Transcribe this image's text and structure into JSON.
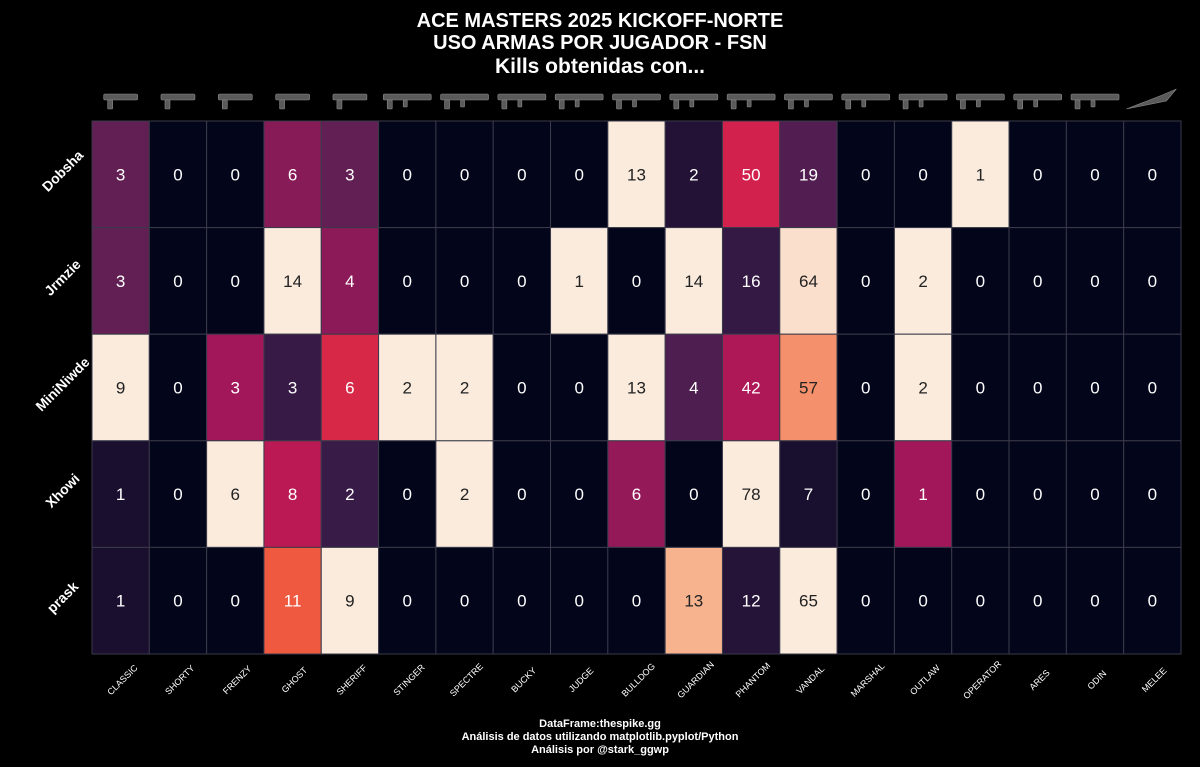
{
  "title_lines": [
    "ACE MASTERS 2025 KICKOFF-NORTE",
    "USO ARMAS POR JUGADOR - FSN",
    "Kills obtenidas con..."
  ],
  "footer_lines": [
    "DataFrame:thespike.gg",
    "Análisis de datos utilizando matplotlib.pyplot/Python",
    "Análisis por @stark_ggwp"
  ],
  "chart_data": {
    "type": "heatmap",
    "title": "ACE MASTERS 2025 KICKOFF-NORTE USO ARMAS POR JUGADOR - FSN Kills obtenidas con...",
    "rows": [
      "Dobsha",
      "Jrmzie",
      "MiniNiwde",
      "Xhowi",
      "prask"
    ],
    "columns": [
      "CLASSIC",
      "SHORTY",
      "FRENZY",
      "GHOST",
      "SHERIFF",
      "STINGER",
      "SPECTRE",
      "BUCKY",
      "JUDGE",
      "BULLDOG",
      "GUARDIAN",
      "PHANTOM",
      "VANDAL",
      "MARSHAL",
      "OUTLAW",
      "OPERATOR",
      "ARES",
      "ODIN",
      "MELEE"
    ],
    "values": [
      [
        3,
        0,
        0,
        6,
        3,
        0,
        0,
        0,
        0,
        13,
        2,
        50,
        19,
        0,
        0,
        1,
        0,
        0,
        0
      ],
      [
        3,
        0,
        0,
        14,
        4,
        0,
        0,
        0,
        1,
        0,
        14,
        16,
        64,
        0,
        2,
        0,
        0,
        0,
        0
      ],
      [
        9,
        0,
        3,
        3,
        6,
        2,
        2,
        0,
        0,
        13,
        4,
        42,
        57,
        0,
        2,
        0,
        0,
        0,
        0
      ],
      [
        1,
        0,
        6,
        8,
        2,
        0,
        2,
        0,
        0,
        6,
        0,
        78,
        7,
        0,
        1,
        0,
        0,
        0,
        0
      ],
      [
        1,
        0,
        0,
        11,
        9,
        0,
        0,
        0,
        0,
        0,
        13,
        12,
        65,
        0,
        0,
        0,
        0,
        0,
        0
      ]
    ],
    "colormap": "rocket (normalized per column)",
    "weapon_icons_row": "top",
    "colors": {
      "background": "#000000",
      "grid": "#3a3a4a",
      "text_dark": "#222222",
      "text_light": "#ffffff"
    }
  }
}
